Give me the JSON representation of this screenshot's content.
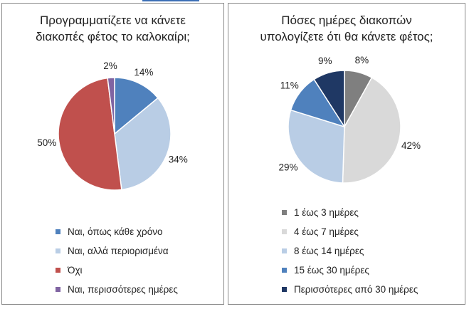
{
  "chart_data": [
    {
      "type": "pie",
      "title": "Προγραμματίζετε να κάνετε διακοπές φέτος το καλοκαίρι;",
      "title_lines": [
        "Προγραμματίζετε να κάνετε",
        "διακοπές φέτος το καλοκαίρι;"
      ],
      "categories": [
        "Ναι, όπως κάθε χρόνο",
        "Ναι, αλλά περιορισμένα",
        "Όχι",
        "Ναι, περισσότερες ημέρες"
      ],
      "values": [
        14,
        34,
        50,
        2
      ],
      "labels": [
        "14%",
        "34%",
        "50%",
        "2%"
      ],
      "colors": [
        "#4f81bd",
        "#b9cde5",
        "#c0504d",
        "#8064a2"
      ],
      "legend_position": "bottom"
    },
    {
      "type": "pie",
      "title": "Πόσες ημέρες διακοπών υπολογίζετε ότι θα κάνετε φέτος;",
      "title_lines": [
        "Πόσες ημέρες διακοπών",
        "υπολογίζετε ότι θα κάνετε φέτος;"
      ],
      "categories": [
        "1 έως 3 ημέρες",
        "4 έως 7 ημέρες",
        "8 έως 14 ημέρες",
        "15 έως 30 ημέρες",
        "Περισσότερες από 30 ημέρες"
      ],
      "values": [
        8,
        42,
        29,
        11,
        9
      ],
      "labels": [
        "8%",
        "42%",
        "29%",
        "11%",
        "9%"
      ],
      "colors": [
        "#7f7f7f",
        "#d9d9d9",
        "#b9cde5",
        "#4f81bd",
        "#1f3864"
      ],
      "legend_position": "bottom"
    }
  ]
}
